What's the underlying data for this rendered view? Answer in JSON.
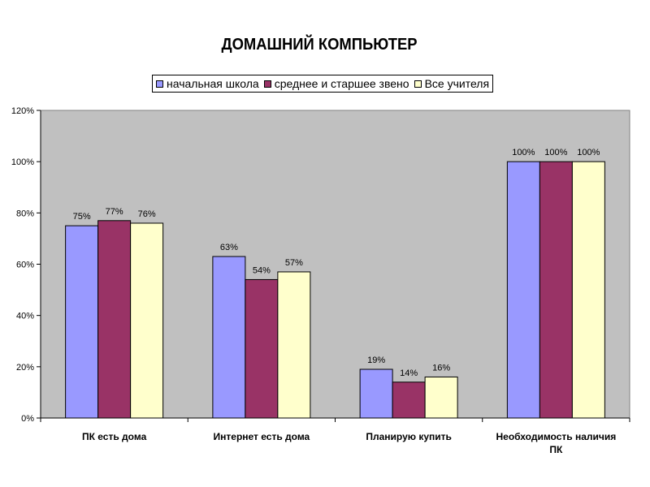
{
  "chart_data": {
    "type": "bar",
    "title": "ДОМАШНИЙ КОМПЬЮТЕР",
    "categories": [
      [
        "ПК есть дома"
      ],
      [
        "Интернет есть дома"
      ],
      [
        "Планирую купить"
      ],
      [
        "Необходимость наличия",
        "ПК"
      ]
    ],
    "series": [
      {
        "name": "начальная школа",
        "color": "#9999ff",
        "values": [
          75,
          63,
          19,
          100
        ],
        "labels": [
          "75%",
          "63%",
          "19%",
          "100%"
        ]
      },
      {
        "name": "среднее и старшее звено",
        "color": "#993366",
        "values": [
          77,
          54,
          14,
          100
        ],
        "labels": [
          "77%",
          "54%",
          "14%",
          "100%"
        ]
      },
      {
        "name": "Все учителя",
        "color": "#ffffcc",
        "values": [
          76,
          57,
          16,
          100
        ],
        "labels": [
          "76%",
          "57%",
          "16%",
          "100%"
        ]
      }
    ],
    "ylim": [
      0,
      120
    ],
    "yticks": [
      0,
      20,
      40,
      60,
      80,
      100,
      120
    ],
    "ytick_labels": [
      "0%",
      "20%",
      "40%",
      "60%",
      "80%",
      "100%",
      "120%"
    ],
    "plot_background": "#c0c0c0",
    "legend_position": "top",
    "grid": false
  }
}
